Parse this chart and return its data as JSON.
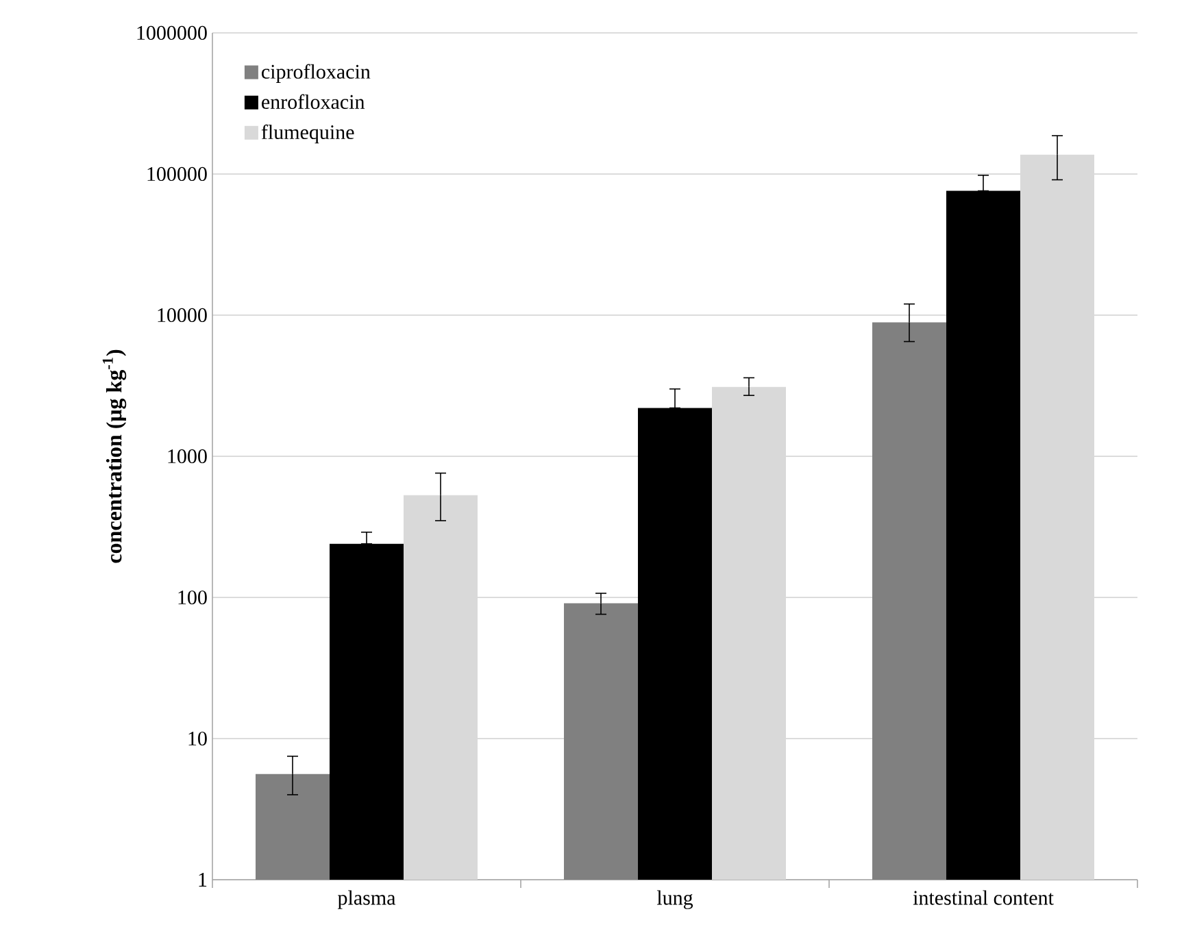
{
  "chart_data": {
    "type": "bar",
    "ylabel": "concentration (μg kg$^{-1}$)",
    "categories": [
      "plasma",
      "lung",
      "intestinal content"
    ],
    "series": [
      {
        "name": "ciprofloxacin",
        "color": "#808080",
        "values": [
          5.6,
          91,
          8900
        ],
        "errors": [
          [
            4.0,
            7.5
          ],
          [
            76,
            107
          ],
          [
            6500,
            12000
          ]
        ]
      },
      {
        "name": "enrofloxacin",
        "color": "#000000",
        "values": [
          240,
          2200,
          76000
        ],
        "errors": [
          [
            240,
            290
          ],
          [
            2200,
            3000
          ],
          [
            76000,
            98000
          ]
        ]
      },
      {
        "name": "flumequine",
        "color": "#d9d9d9",
        "values": [
          530,
          3100,
          137000
        ],
        "errors": [
          [
            350,
            760
          ],
          [
            2700,
            3600
          ],
          [
            91000,
            187000
          ]
        ]
      }
    ],
    "log": "y",
    "ylim": [
      1,
      1000000
    ],
    "yticks": [
      1,
      10,
      100,
      1000,
      10000,
      100000,
      1000000
    ],
    "grid": "y",
    "legend": "top left"
  }
}
